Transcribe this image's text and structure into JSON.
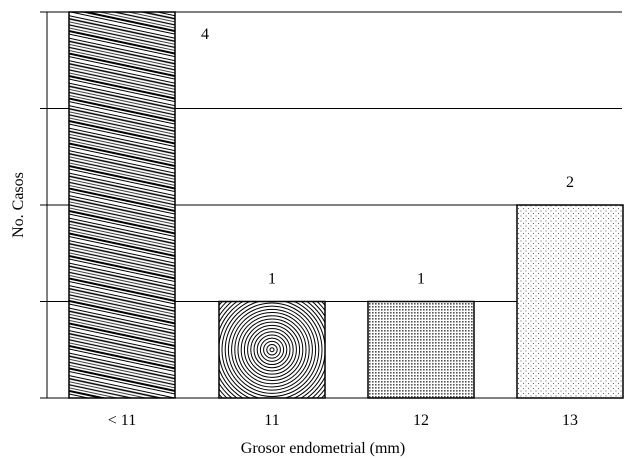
{
  "chart_data": {
    "type": "bar",
    "categories": [
      "< 11",
      "11",
      "12",
      "13"
    ],
    "values": [
      4,
      1,
      1,
      2
    ],
    "data_labels": [
      "4",
      "1",
      "1",
      "2"
    ],
    "xlabel": "Grosor endometrial (mm)",
    "ylabel": "No. Casos",
    "ylim": [
      0,
      4
    ],
    "grid": true,
    "bar_patterns": [
      "diagonal-lines",
      "concentric-circles",
      "dense-dots",
      "sparse-dots"
    ]
  }
}
